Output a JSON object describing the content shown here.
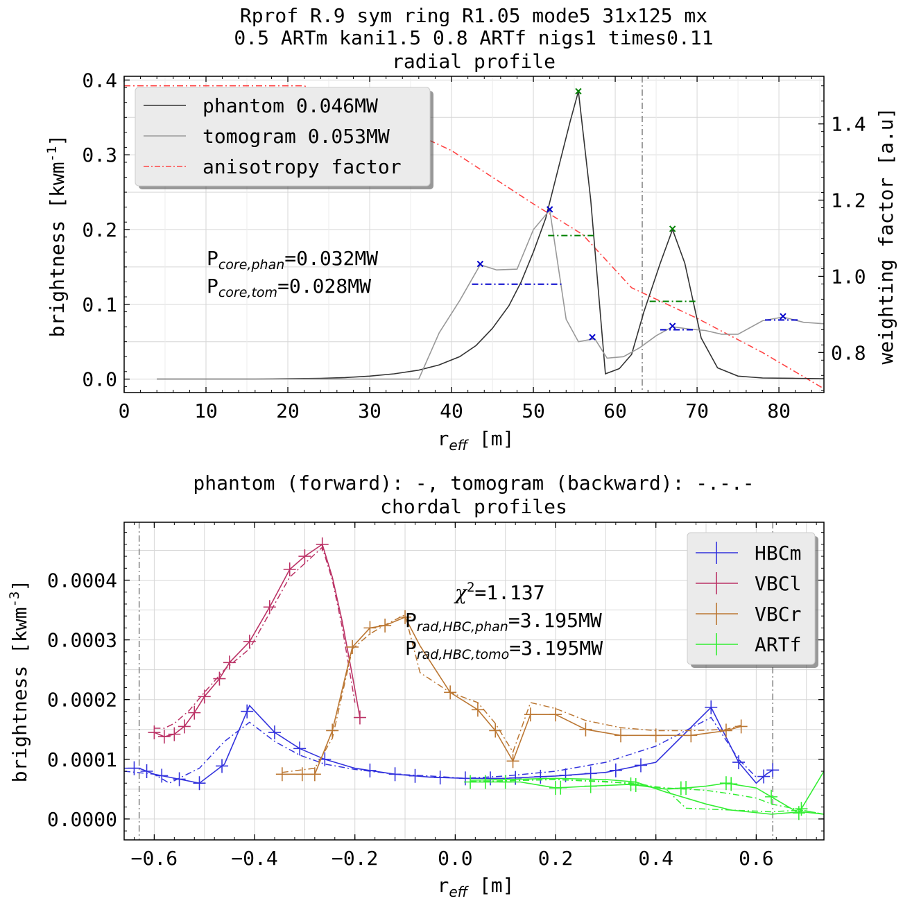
{
  "top_title": {
    "line1": "Rprof R.9 sym ring R1.05 mode5 31x125 mx",
    "line2": "0.5 ARTm kani1.5 0.8 ARTf nigs1 times0.11",
    "line3": "radial profile"
  },
  "bottom_title": {
    "line1": "phantom (forward): -,   tomogram (backward): -.-.-",
    "line2": "chordal profiles"
  },
  "chart_data": [
    {
      "type": "line",
      "title": "radial profile",
      "xlabel_main": "r",
      "xlabel_sub": "eff",
      "xlabel_tail": " [m]",
      "ylabel_main": "brightness [kwm",
      "ylabel_sup": "-1",
      "ylabel_tail": "]",
      "y2label": "weighting factor [a.u]",
      "xlim": [
        0,
        85.5
      ],
      "ylim": [
        -0.018,
        0.405
      ],
      "y2lim": [
        0.695,
        1.525
      ],
      "xticks": [
        0,
        10,
        20,
        30,
        40,
        50,
        60,
        70,
        80
      ],
      "xtick_labels": [
        "0",
        "10",
        "20",
        "30",
        "40",
        "50",
        "60",
        "70",
        "80"
      ],
      "yticks": [
        0.0,
        0.1,
        0.2,
        0.3,
        0.4
      ],
      "ytick_labels": [
        "0.0",
        "0.1",
        "0.2",
        "0.3",
        "0.4"
      ],
      "y2ticks": [
        0.8,
        1.0,
        1.2,
        1.4
      ],
      "y2tick_labels": [
        "0.8",
        "1.0",
        "1.2",
        "1.4"
      ],
      "grid": true,
      "legend_position": "top-left",
      "vline_x": 63.3,
      "series": [
        {
          "name": "phantom 0.046MW",
          "color": "#333333",
          "style": "solid",
          "x": [
            4,
            10,
            16,
            20,
            24,
            27,
            30,
            33,
            36,
            38.5,
            41,
            43,
            45,
            47,
            48.5,
            50,
            51.5,
            53,
            54.5,
            55.5,
            57,
            58.8,
            60.5,
            62,
            63.5,
            65.5,
            67,
            68.5,
            70.5,
            72.5,
            75,
            78,
            82,
            85.5
          ],
          "y": [
            0.0,
            0.0,
            0.0,
            0.0005,
            0.001,
            0.002,
            0.004,
            0.007,
            0.012,
            0.019,
            0.03,
            0.045,
            0.068,
            0.098,
            0.13,
            0.17,
            0.215,
            0.28,
            0.345,
            0.385,
            0.24,
            0.007,
            0.014,
            0.033,
            0.09,
            0.155,
            0.2,
            0.155,
            0.055,
            0.015,
            0.004,
            0.0015,
            0.001,
            0.0005
          ]
        },
        {
          "name": "tomogram 0.053MW",
          "color": "#999999",
          "style": "solid",
          "x": [
            4,
            10,
            20,
            30,
            36,
            38.5,
            41,
            43.5,
            45.5,
            48,
            50,
            52,
            54,
            55.5,
            57.5,
            59,
            61,
            63,
            65,
            67,
            69,
            71,
            73,
            75,
            78,
            80.5,
            83,
            85.5
          ],
          "y": [
            0.0,
            0.0,
            0.0,
            0.0,
            0.0,
            0.062,
            0.105,
            0.153,
            0.146,
            0.147,
            0.2,
            0.226,
            0.08,
            0.05,
            0.054,
            0.028,
            0.03,
            0.042,
            0.058,
            0.07,
            0.067,
            0.065,
            0.06,
            0.06,
            0.078,
            0.083,
            0.076,
            0.074
          ]
        }
      ],
      "y2_series": {
        "name": "anisotropy factor",
        "color": "#ff4444",
        "style": "dashdot",
        "x": [
          0,
          22,
          30,
          40,
          50,
          56,
          62,
          70,
          78,
          85.5
        ],
        "y": [
          1.5,
          1.5,
          1.43,
          1.33,
          1.19,
          1.11,
          0.97,
          0.89,
          0.8,
          0.705
        ]
      },
      "markers": [
        {
          "color": "#008000",
          "x": 55.5,
          "y": 0.385
        },
        {
          "color": "#008000",
          "x": 67,
          "y": 0.201
        },
        {
          "color": "#0000cc",
          "x": 43.5,
          "y": 0.154
        },
        {
          "color": "#0000cc",
          "x": 52,
          "y": 0.227
        },
        {
          "color": "#0000cc",
          "x": 57.2,
          "y": 0.056
        },
        {
          "color": "#0000cc",
          "x": 67,
          "y": 0.071
        },
        {
          "color": "#0000cc",
          "x": 80.5,
          "y": 0.084
        }
      ],
      "hsegments": [
        {
          "color": "#008000",
          "x1": 51.8,
          "x2": 57.5,
          "y": 0.192
        },
        {
          "color": "#008000",
          "x1": 64.2,
          "x2": 69.8,
          "y": 0.104
        },
        {
          "color": "#0000cc",
          "x1": 42.5,
          "x2": 53.5,
          "y": 0.127
        },
        {
          "color": "#0000cc",
          "x1": 65.5,
          "x2": 69.5,
          "y": 0.066
        },
        {
          "color": "#0000cc",
          "x1": 78.3,
          "x2": 82.5,
          "y": 0.079
        }
      ],
      "annotations": [
        {
          "main": "P",
          "sub": "core,phan",
          "tail": "=0.032MW"
        },
        {
          "main": "P",
          "sub": "core,tom",
          "tail": "=0.028MW"
        }
      ]
    },
    {
      "type": "line",
      "title": "chordal profiles",
      "xlabel_main": "r",
      "xlabel_sub": "eff",
      "xlabel_tail": " [m]",
      "ylabel_main": "brightness [kwm",
      "ylabel_sup": "-3",
      "ylabel_tail": "]",
      "xlim": [
        -0.66,
        0.735
      ],
      "ylim": [
        -3.5e-05,
        0.000497
      ],
      "xticks": [
        -0.6,
        -0.4,
        -0.2,
        0.0,
        0.2,
        0.4,
        0.6
      ],
      "xtick_labels": [
        "−0.6",
        "−0.4",
        "−0.2",
        "0.0",
        "0.2",
        "0.4",
        "0.6"
      ],
      "yticks": [
        0.0,
        0.0001,
        0.0002,
        0.0003,
        0.0004
      ],
      "ytick_labels": [
        "0.0000",
        "0.0001",
        "0.0002",
        "0.0003",
        "0.0004"
      ],
      "grid": true,
      "legend_position": "top-right",
      "vlines_x": [
        -0.63,
        0.633
      ],
      "series": [
        {
          "name": "HBCm",
          "color": "#3333dd",
          "phantom": {
            "x": [
              -0.66,
              -0.63,
              -0.6,
              -0.57,
              -0.51,
              -0.46,
              -0.41,
              -0.36,
              -0.31,
              -0.26,
              -0.2,
              -0.12,
              -0.05,
              0.02,
              0.1,
              0.2,
              0.3,
              0.4,
              0.51,
              0.565,
              0.6,
              0.62,
              0.633
            ],
            "y": [
              8.5e-05,
              8.5e-05,
              7.5e-05,
              7e-05,
              6e-05,
              9.2e-05,
              0.00019,
              0.000145,
              0.000118,
              0.0001,
              8.5e-05,
              7.5e-05,
              7e-05,
              6.8e-05,
              6.8e-05,
              7.2e-05,
              7.8e-05,
              9.5e-05,
              0.000187,
              9.5e-05,
              6e-05,
              7.5e-05,
              8.2e-05
            ]
          },
          "tomogram": {
            "x": [
              -0.66,
              -0.6,
              -0.57,
              -0.51,
              -0.46,
              -0.41,
              -0.36,
              -0.31,
              -0.26,
              -0.2,
              -0.12,
              -0.05,
              0.02,
              0.1,
              0.2,
              0.3,
              0.4,
              0.51,
              0.565,
              0.6
            ],
            "y": [
              8e-05,
              7.5e-05,
              6e-05,
              8.5e-05,
              0.00013,
              0.000162,
              0.00013,
              0.000107,
              9.2e-05,
              8.3e-05,
              7.5e-05,
              7.2e-05,
              6.8e-05,
              7.2e-05,
              8e-05,
              9.5e-05,
              0.000122,
              0.00017,
              0.0001,
              7e-05
            ]
          },
          "errbars_x": [
            -0.64,
            -0.615,
            -0.585,
            -0.55,
            -0.51,
            -0.465,
            -0.415,
            -0.36,
            -0.31,
            -0.26,
            -0.17,
            -0.12,
            -0.08,
            -0.03,
            0.02,
            0.07,
            0.12,
            0.17,
            0.22,
            0.27,
            0.32,
            0.37,
            0.51,
            0.565,
            0.615,
            0.633
          ]
        },
        {
          "name": "VBCl",
          "color": "#bb3366",
          "phantom": {
            "x": [
              -0.6,
              -0.58,
              -0.56,
              -0.54,
              -0.52,
              -0.5,
              -0.47,
              -0.45,
              -0.41,
              -0.37,
              -0.33,
              -0.3,
              -0.265,
              -0.245,
              -0.225,
              -0.205,
              -0.19
            ],
            "y": [
              0.000145,
              0.000138,
              0.000142,
              0.000155,
              0.000178,
              0.000205,
              0.000235,
              0.000262,
              0.000297,
              0.000355,
              0.000418,
              0.00044,
              0.00046,
              0.000405,
              0.00033,
              0.00024,
              0.00017
            ]
          },
          "tomogram": {
            "x": [
              -0.6,
              -0.58,
              -0.56,
              -0.53,
              -0.5,
              -0.46,
              -0.41,
              -0.37,
              -0.33,
              -0.3,
              -0.265,
              -0.245,
              -0.225,
              -0.2
            ],
            "y": [
              0.000152,
              0.000152,
              0.00016,
              0.000182,
              0.000212,
              0.00025,
              0.000285,
              0.000345,
              0.000405,
              0.000428,
              0.000455,
              0.0004,
              0.00032,
              0.000195
            ]
          },
          "errbars_x": [
            -0.6,
            -0.58,
            -0.56,
            -0.54,
            -0.52,
            -0.5,
            -0.47,
            -0.45,
            -0.41,
            -0.37,
            -0.33,
            -0.3,
            -0.265,
            -0.19
          ]
        },
        {
          "name": "VBCr",
          "color": "#bb7733",
          "phantom": {
            "x": [
              -0.345,
              -0.305,
              -0.28,
              -0.245,
              -0.205,
              -0.17,
              -0.14,
              -0.1,
              -0.07,
              -0.01,
              0.045,
              0.08,
              0.115,
              0.15,
              0.2,
              0.26,
              0.33,
              0.4,
              0.47,
              0.54,
              0.57
            ],
            "y": [
              7.5e-05,
              7.5e-05,
              7.5e-05,
              0.000148,
              0.000288,
              0.00032,
              0.000324,
              0.000338,
              0.00029,
              0.000212,
              0.000183,
              0.000148,
              9.7e-05,
              0.000175,
              0.000175,
              0.00015,
              0.00014,
              0.00014,
              0.00014,
              0.000148,
              0.000155
            ]
          },
          "tomogram": {
            "x": [
              -0.345,
              -0.28,
              -0.245,
              -0.205,
              -0.17,
              -0.14,
              -0.1,
              -0.07,
              -0.01,
              0.045,
              0.08,
              0.115,
              0.15,
              0.2,
              0.26,
              0.33,
              0.4,
              0.47,
              0.54,
              0.57
            ],
            "y": [
              7.8e-05,
              8.5e-05,
              0.000135,
              0.000285,
              0.00031,
              0.000325,
              0.000342,
              0.000245,
              0.000212,
              0.000195,
              0.00016,
              0.000112,
              0.000195,
              0.000185,
              0.000165,
              0.000153,
              0.000148,
              0.000148,
              0.00015,
              0.000157
            ]
          },
          "errbars_x": [
            -0.345,
            -0.305,
            -0.28,
            -0.245,
            -0.205,
            -0.17,
            -0.14,
            -0.1,
            -0.01,
            0.045,
            0.08,
            0.115,
            0.15,
            0.2,
            0.26,
            0.33,
            0.4,
            0.47,
            0.54,
            0.57
          ]
        },
        {
          "name": "ARTf",
          "color": "#33ee33",
          "phantom": {
            "x": [
              0.03,
              0.08,
              0.13,
              0.2,
              0.27,
              0.35,
              0.42,
              0.46,
              0.5,
              0.54,
              0.6,
              0.685,
              0.735
            ],
            "y": [
              6.2e-05,
              6.2e-05,
              6.2e-05,
              5.2e-05,
              5.5e-05,
              5.8e-05,
              5e-05,
              5.2e-05,
              5.5e-05,
              6e-05,
              5.2e-05,
              1e-05,
              8e-05
            ],
            "x2": [
              0.03,
              0.1,
              0.2,
              0.3,
              0.36,
              0.42,
              0.5,
              0.55,
              0.63,
              0.69,
              0.735
            ],
            "y2": [
              6.5e-05,
              6.6e-05,
              6.8e-05,
              6.6e-05,
              6.2e-05,
              4.5e-05,
              2.5e-05,
              1.5e-05,
              8e-06,
              1.2e-05,
              8e-06
            ]
          },
          "tomogram": {
            "x": [
              0.03,
              0.1,
              0.2,
              0.3,
              0.36,
              0.42,
              0.46,
              0.55,
              0.63,
              0.69,
              0.735
            ],
            "y": [
              6.2e-05,
              6.4e-05,
              6.6e-05,
              6.2e-05,
              6e-05,
              5e-05,
              1.8e-05,
              1.5e-05,
              1.2e-05,
              1.5e-05,
              8e-06
            ],
            "x2": [
              0.03,
              0.1,
              0.2,
              0.3,
              0.36,
              0.42,
              0.5,
              0.55,
              0.6,
              0.63,
              0.69,
              0.735
            ],
            "y2": [
              6.3e-05,
              6.4e-05,
              6.6e-05,
              6.3e-05,
              5.8e-05,
              5.2e-05,
              4.8e-05,
              4.2e-05,
              3.5e-05,
              2.5e-05,
              1.5e-05,
              8e-06
            ]
          },
          "errbars_x": [
            0.03,
            0.06,
            0.1,
            0.2,
            0.21,
            0.27,
            0.35,
            0.36,
            0.45,
            0.46,
            0.54,
            0.55,
            0.63,
            0.685,
            0.69
          ]
        }
      ],
      "annotations": [
        {
          "main": "χ",
          "sup": "2",
          "tail": "=1.137"
        },
        {
          "main": "P",
          "sub": "rad,HBC,phan",
          "tail": "=3.195MW"
        },
        {
          "main": "P",
          "sub": "rad,HBC,tomo",
          "tail": "=3.195MW"
        }
      ]
    }
  ]
}
